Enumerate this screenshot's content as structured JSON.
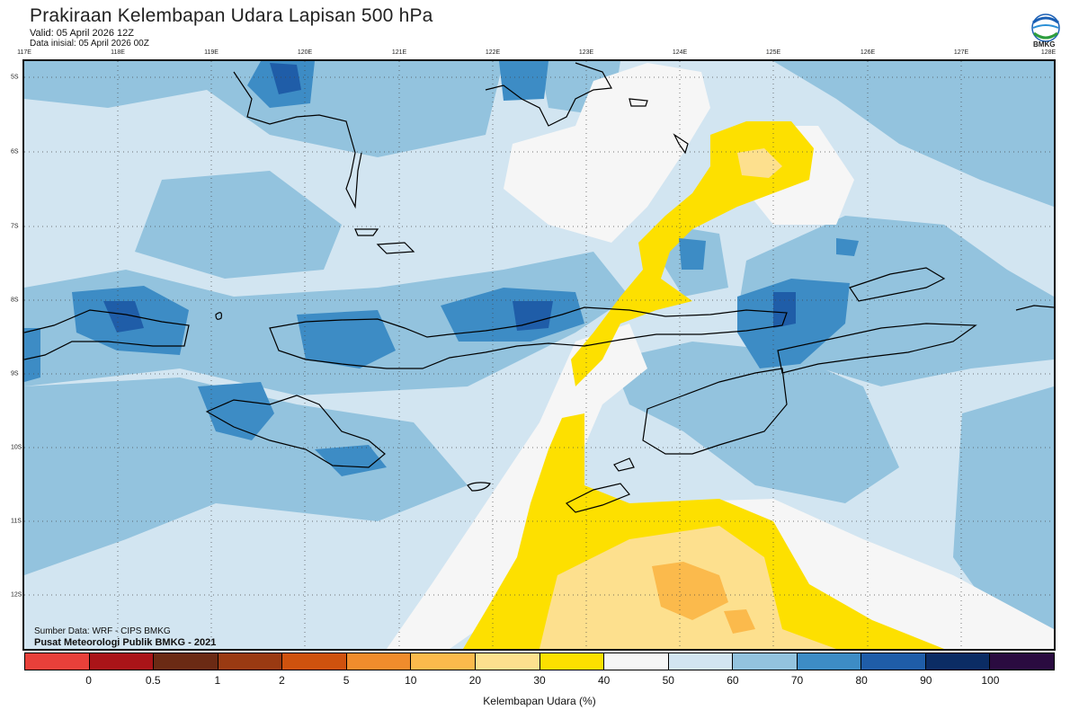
{
  "header": {
    "title": "Prakiraan Kelembapan Udara Lapisan 500 hPa",
    "valid": "Valid: 05 April 2026 12Z",
    "init": "Data inisial: 05 April 2026 00Z"
  },
  "logo": {
    "text": "BMKG",
    "icon": "bmkg-logo-icon"
  },
  "axes": {
    "lon_labels": [
      "117E",
      "118E",
      "119E",
      "120E",
      "121E",
      "122E",
      "123E",
      "124E",
      "125E",
      "126E",
      "127E",
      "128E"
    ],
    "lat_labels": [
      "5S",
      "6S",
      "7S",
      "8S",
      "9S",
      "10S",
      "11S",
      "12S"
    ]
  },
  "credits": {
    "source": "Sumber Data: WRF - CIPS BMKG",
    "center": "Pusat Meteorologi Publik BMKG - 2021"
  },
  "colorbar": {
    "ticks": [
      "0",
      "0.5",
      "1",
      "2",
      "5",
      "10",
      "20",
      "30",
      "40",
      "50",
      "60",
      "70",
      "80",
      "90",
      "100"
    ],
    "colors": [
      "#e8403a",
      "#aa1418",
      "#6b2a14",
      "#9a3a12",
      "#cf520e",
      "#f08c2c",
      "#fbba4c",
      "#fde08e",
      "#fde000",
      "#f6f6f6",
      "#d2e5f1",
      "#93c3de",
      "#3d8cc5",
      "#1f5da8",
      "#0b2c64",
      "#2a0b40"
    ],
    "unit": "Kelembapan Udara (%)"
  },
  "map": {
    "colors": {
      "c40": "#fde000",
      "c50": "#f6f6f6",
      "c60": "#d2e5f1",
      "c70": "#93c3de",
      "c80": "#3d8cc5",
      "c90": "#1f5da8",
      "dry30": "#fde08e",
      "dry20": "#fbba4c"
    }
  }
}
